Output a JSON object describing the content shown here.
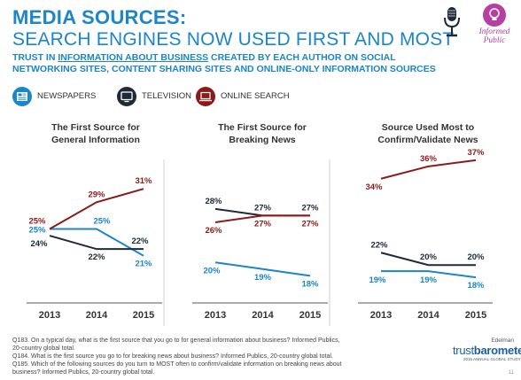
{
  "header": {
    "title_line1": "MEDIA SOURCES:",
    "title_line2": "SEARCH ENGINES NOW USED FIRST AND MOST",
    "subtitle_part1": "TRUST IN ",
    "subtitle_underlined": "INFORMATION ABOUT BUSINESS",
    "subtitle_part2": " CREATED BY EACH AUTHOR ON SOCIAL NETWORKING SITES, CONTENT SHARING SITES AND ONLINE-ONLY INFORMATION SOURCES",
    "logo_line1": "Informed",
    "logo_line2": "Public"
  },
  "legend": {
    "items": [
      {
        "label": "NEWSPAPERS",
        "color": "#1b86c8",
        "icon": "newspaper-icon"
      },
      {
        "label": "TELEVISION",
        "color": "#1c2a3a",
        "icon": "television-icon"
      },
      {
        "label": "ONLINE SEARCH",
        "color": "#8b1a1a",
        "icon": "laptop-icon"
      }
    ]
  },
  "colors": {
    "newspapers": "#1b86c8",
    "television": "#1c2a3a",
    "online_search": "#8b1a1a"
  },
  "chart_data": [
    {
      "type": "line",
      "title_line1": "The First Source for",
      "title_line2": "General Information",
      "x": [
        "2013",
        "2014",
        "2015"
      ],
      "ylim": [
        15,
        35
      ],
      "series": [
        {
          "name": "NEWSPAPERS",
          "values": [
            25,
            25,
            21
          ]
        },
        {
          "name": "TELEVISION",
          "values": [
            24,
            22,
            22
          ]
        },
        {
          "name": "ONLINE SEARCH",
          "values": [
            25,
            29,
            31
          ]
        }
      ]
    },
    {
      "type": "line",
      "title_line1": "The First Source for",
      "title_line2": "Breaking News",
      "x": [
        "2013",
        "2014",
        "2015"
      ],
      "ylim": [
        15,
        35
      ],
      "series": [
        {
          "name": "NEWSPAPERS",
          "values": [
            20,
            19,
            18
          ]
        },
        {
          "name": "TELEVISION",
          "values": [
            28,
            27,
            27
          ]
        },
        {
          "name": "ONLINE SEARCH",
          "values": [
            26,
            27,
            27
          ]
        }
      ]
    },
    {
      "type": "line",
      "title_line1": "Source Used Most to",
      "title_line2": "Confirm/Validate News",
      "x": [
        "2013",
        "2014",
        "2015"
      ],
      "ylim": [
        15,
        40
      ],
      "series": [
        {
          "name": "NEWSPAPERS",
          "values": [
            19,
            19,
            18
          ]
        },
        {
          "name": "TELEVISION",
          "values": [
            22,
            20,
            20
          ]
        },
        {
          "name": "ONLINE SEARCH",
          "values": [
            34,
            36,
            37
          ]
        }
      ]
    }
  ],
  "footnote": {
    "q183": "Q183. On a typical day, what is the first source that you go to for general information about business? Informed Publics, 20-country global total.",
    "q184": "Q184. What is the first source you go to for breaking news about business? Informed Publics, 20-country global total.",
    "q185": "Q185. Which of the following sources do you turn to MOST often to confirm/validate information on breaking news about business? Informed Publics, 20-country global total."
  },
  "brand": {
    "company": "Edelman",
    "name_part1": "trust",
    "name_part2": "barometer",
    "tagline": "2016 ANNUAL GLOBAL STUDY"
  },
  "page_number": "11"
}
